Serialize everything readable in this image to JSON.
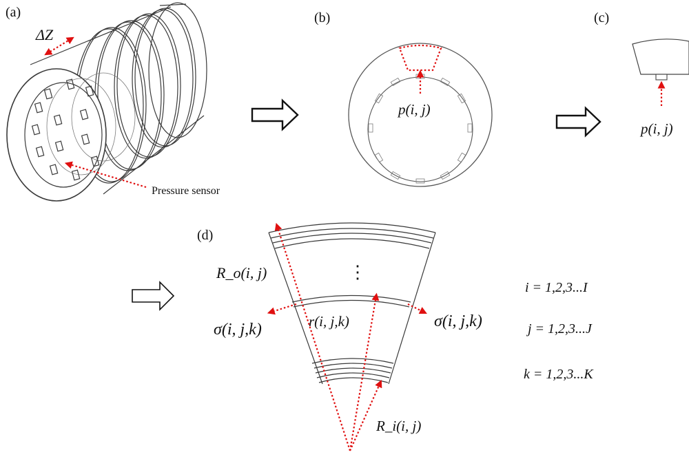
{
  "panels": {
    "a": {
      "label": "(a)",
      "delta_z": "ΔZ",
      "sensor_label": "Pressure sensor"
    },
    "b": {
      "label": "(b)",
      "pressure": "p(i, j)"
    },
    "c": {
      "label": "(c)",
      "pressure": "p(i, j)"
    },
    "d": {
      "label": "(d)",
      "outer_radius": "R_o(i, j)",
      "inner_radius": "R_i(i, j)",
      "radius": "r(i, j,k)",
      "stress_left": "σ(i, j,k)",
      "stress_right": "σ(i, j,k)",
      "ellipsis": "⋮"
    }
  },
  "indices": [
    "i = 1,2,3...I",
    "j = 1,2,3...J",
    "k = 1,2,3...K"
  ],
  "colors": {
    "accent": "#e01010",
    "line": "#3a3a3a"
  },
  "icons": [
    "arrow-right-icon",
    "arrow-right-icon",
    "arrow-right-icon"
  ]
}
